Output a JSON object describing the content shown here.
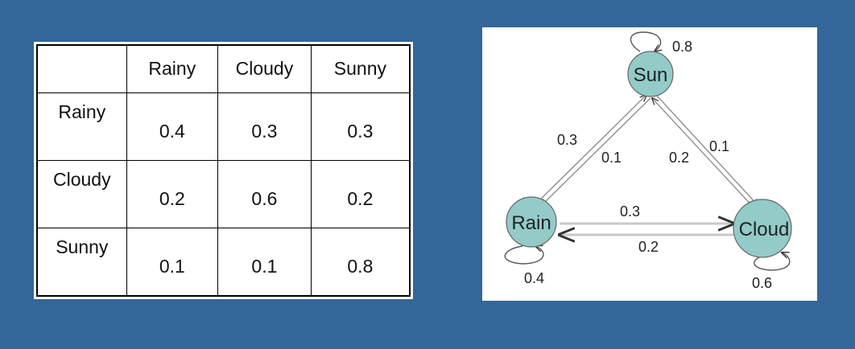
{
  "table": {
    "headers": [
      "",
      "Rainy",
      "Cloudy",
      "Sunny"
    ],
    "rows": [
      {
        "label": "Rainy",
        "values": [
          "0.4",
          "0.3",
          "0.3"
        ]
      },
      {
        "label": "Cloudy",
        "values": [
          "0.2",
          "0.6",
          "0.2"
        ]
      },
      {
        "label": "Sunny",
        "values": [
          "0.1",
          "0.1",
          "0.8"
        ]
      }
    ]
  },
  "diagram": {
    "node_color": "#93cbc9",
    "nodes": {
      "sun": "Sun",
      "rain": "Rain",
      "cloud": "Cloud"
    },
    "edges": {
      "sun_self": "0.8",
      "rain_to_sun": "0.3",
      "sun_to_rain": "0.1",
      "cloud_to_sun": "0.2",
      "sun_to_cloud": "0.1",
      "rain_to_cloud": "0.3",
      "cloud_to_rain": "0.2",
      "rain_self": "0.4",
      "cloud_self": "0.6"
    }
  }
}
